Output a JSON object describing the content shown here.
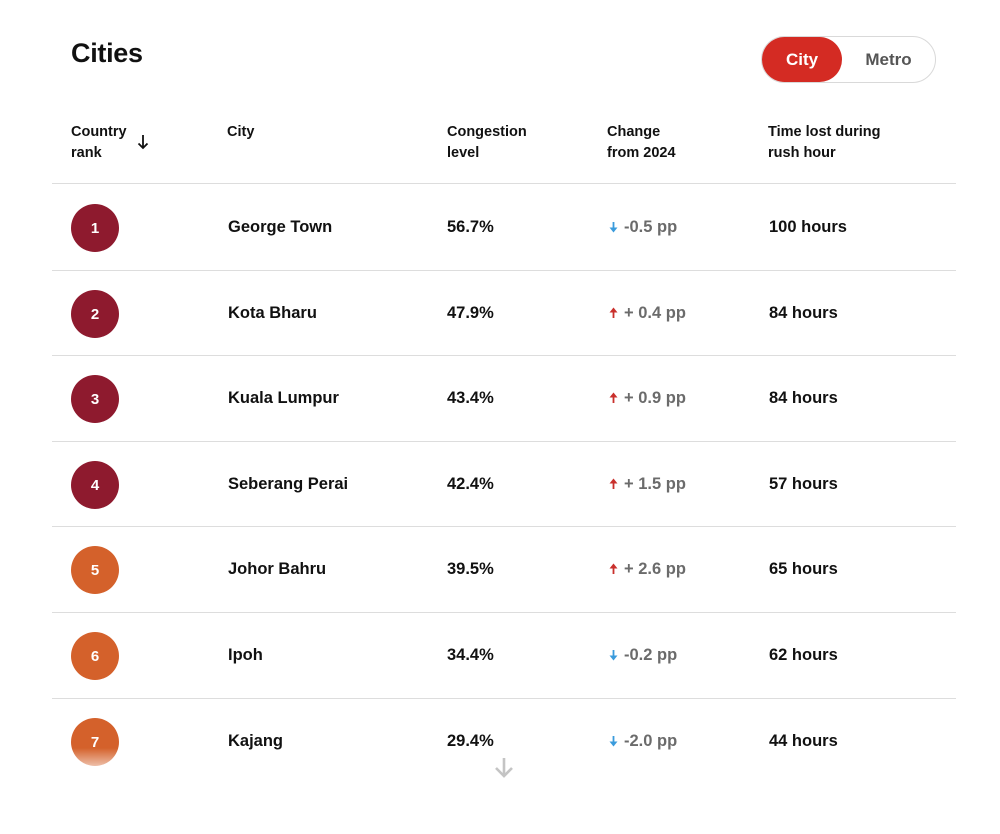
{
  "title": "Cities",
  "toggle": {
    "city_label": "City",
    "metro_label": "Metro",
    "selected": "City",
    "accent": "#d42b23"
  },
  "table": {
    "headers": {
      "rank": [
        "Country",
        "rank"
      ],
      "city": "City",
      "congestion": [
        "Congestion",
        "level"
      ],
      "change": [
        "Change",
        "from 2024"
      ],
      "time": [
        "Time lost during",
        "rush hour"
      ]
    },
    "sort_icon": "arrow-down-icon",
    "rows": [
      {
        "rank": "1",
        "city": "George Town",
        "congestion": "56.7%",
        "change": "-0.5 pp",
        "trend": "down",
        "time": "100 hours",
        "badge_color": "#8e1a2e"
      },
      {
        "rank": "2",
        "city": "Kota Bharu",
        "congestion": "47.9%",
        "change": "+ 0.4 pp",
        "trend": "up",
        "time": "84 hours",
        "badge_color": "#8e1a2e"
      },
      {
        "rank": "3",
        "city": "Kuala Lumpur",
        "congestion": "43.4%",
        "change": "+ 0.9 pp",
        "trend": "up",
        "time": "84 hours",
        "badge_color": "#8e1a2e"
      },
      {
        "rank": "4",
        "city": "Seberang Perai",
        "congestion": "42.4%",
        "change": "+ 1.5 pp",
        "trend": "up",
        "time": "57 hours",
        "badge_color": "#8e1a2e"
      },
      {
        "rank": "5",
        "city": "Johor Bahru",
        "congestion": "39.5%",
        "change": "+ 2.6 pp",
        "trend": "up",
        "time": "65 hours",
        "badge_color": "#d4612b"
      },
      {
        "rank": "6",
        "city": "Ipoh",
        "congestion": "34.4%",
        "change": "-0.2 pp",
        "trend": "down",
        "time": "62 hours",
        "badge_color": "#d4612b"
      },
      {
        "rank": "7",
        "city": "Kajang",
        "congestion": "29.4%",
        "change": "-2.0 pp",
        "trend": "down",
        "time": "44 hours",
        "badge_color": "#d4612b"
      }
    ]
  },
  "colors": {
    "trend_up": "#c9302c",
    "trend_down": "#3a9bdc"
  },
  "scroll_icon": "chevron-down-icon"
}
